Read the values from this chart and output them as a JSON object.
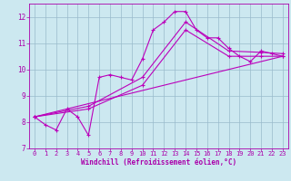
{
  "title": "",
  "xlabel": "Windchill (Refroidissement éolien,°C)",
  "ylabel": "",
  "bg_color": "#cce8f0",
  "line_color": "#bb00bb",
  "grid_color": "#99bbcc",
  "text_color": "#aa00aa",
  "spine_color": "#aa00aa",
  "xlim": [
    -0.5,
    23.5
  ],
  "ylim": [
    7,
    12.5
  ],
  "xticks": [
    0,
    1,
    2,
    3,
    4,
    5,
    6,
    7,
    8,
    9,
    10,
    11,
    12,
    13,
    14,
    15,
    16,
    17,
    18,
    19,
    20,
    21,
    22,
    23
  ],
  "yticks": [
    7,
    8,
    9,
    10,
    11,
    12
  ],
  "line1_x": [
    0,
    1,
    2,
    3,
    4,
    5,
    6,
    7,
    8,
    9,
    10,
    11,
    12,
    13,
    14,
    15,
    16,
    17,
    18,
    19,
    20,
    21,
    22,
    23
  ],
  "line1_y": [
    8.2,
    7.9,
    7.7,
    8.5,
    8.2,
    7.5,
    9.7,
    9.8,
    9.7,
    9.6,
    10.4,
    11.5,
    11.8,
    12.2,
    12.2,
    11.5,
    11.2,
    11.2,
    10.8,
    10.5,
    10.3,
    10.7,
    10.6,
    10.5
  ],
  "line2_x": [
    0,
    5,
    10,
    14,
    18,
    21,
    23
  ],
  "line2_y": [
    8.2,
    8.5,
    9.4,
    11.5,
    10.5,
    10.5,
    10.5
  ],
  "line3_x": [
    0,
    5,
    10,
    14,
    18,
    21,
    23
  ],
  "line3_y": [
    8.2,
    8.6,
    9.7,
    11.8,
    10.7,
    10.65,
    10.6
  ],
  "line4_x": [
    0,
    23
  ],
  "line4_y": [
    8.2,
    10.5
  ]
}
